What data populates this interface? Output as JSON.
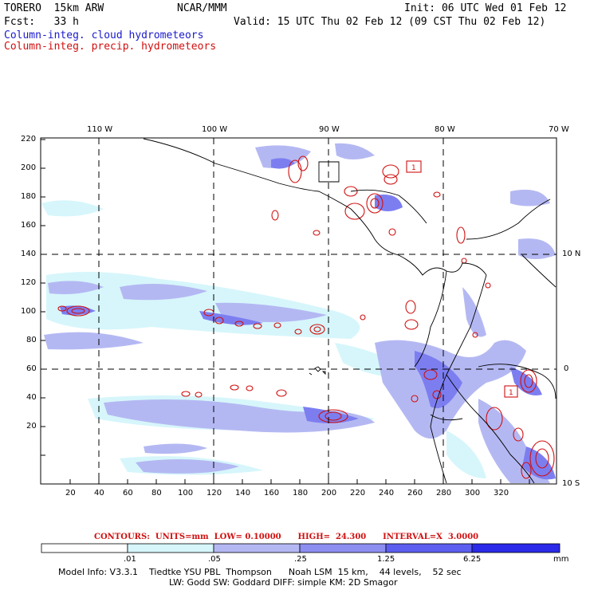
{
  "header": {
    "model": "TORERO  15km ARW",
    "org": "NCAR/MMM",
    "init": "Init: 06 UTC Wed 01 Feb 12",
    "fcst": "Fcst:   33 h",
    "valid": "Valid: 15 UTC Thu 02 Feb 12 (09 CST Thu 02 Feb 12)",
    "field_cloud": "Column-integ. cloud hydrometeors",
    "field_precip": "Column-integ. precip. hydrometeors"
  },
  "map": {
    "lon_labels": [
      "110 W",
      "100 W",
      "90 W",
      "80 W",
      "70 W"
    ],
    "lat_labels": [
      "10 N",
      "0",
      "10 S"
    ],
    "x_ticks": [
      "20",
      "40",
      "60",
      "80",
      "100",
      "120",
      "140",
      "160",
      "180",
      "200",
      "220",
      "240",
      "260",
      "280",
      "300",
      "320"
    ],
    "y_ticks": [
      "220",
      "200",
      "180",
      "160",
      "140",
      "120",
      "100",
      "80",
      "60",
      "40",
      "20"
    ],
    "box_labels": [
      "1",
      "1"
    ],
    "colors": {
      "cloud": "#1a1acc",
      "precip": "#d01010"
    }
  },
  "contours": {
    "text": "CONTOURS:  UNITS=mm  LOW= 0.10000      HIGH=  24.300      INTERVAL=X  3.0000"
  },
  "colorbar": {
    "labels": [
      ".01",
      ".05",
      ".25",
      "1.25",
      "6.25",
      "mm"
    ],
    "colors": [
      "#ffffff",
      "#d6f6fb",
      "#b4b8f2",
      "#8c8ef0",
      "#5c5ef0",
      "#2a2ae8"
    ]
  },
  "footer": {
    "line1": "Model Info: V3.3.1    Tiedtke YSU PBL  Thompson      Noah LSM  15 km,    44 levels,    52 sec",
    "line2": "LW: Godd SW: Goddard DIFF: simple KM: 2D Smagor"
  }
}
